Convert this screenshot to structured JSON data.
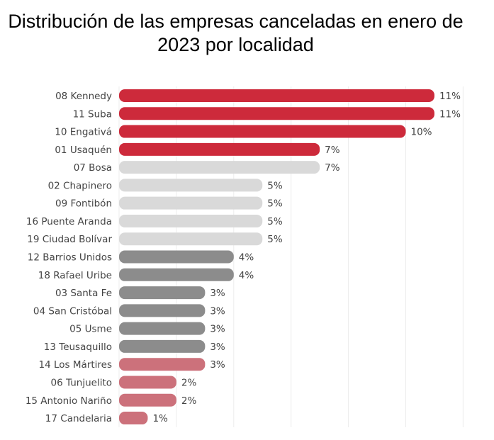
{
  "chart_data": {
    "type": "bar",
    "orientation": "horizontal",
    "title": "Distribución de las empresas canceladas en enero de 2023 por localidad",
    "xlabel": "",
    "ylabel": "",
    "xlim": [
      0,
      12
    ],
    "grid": true,
    "grid_step": 2,
    "value_suffix": "%",
    "categories": [
      "08 Kennedy",
      "11 Suba",
      "10 Engativá",
      "01 Usaquén",
      "07 Bosa",
      "02 Chapinero",
      "09 Fontibón",
      "16 Puente Aranda",
      "19 Ciudad Bolívar",
      "12 Barrios Unidos",
      "18 Rafael Uribe",
      "03 Santa Fe",
      "04 San Cristóbal",
      "05 Usme",
      "13 Teusaquillo",
      "14 Los Mártires",
      "06 Tunjuelito",
      "15 Antonio Nariño",
      "17 Candelaria"
    ],
    "values": [
      11,
      11,
      10,
      7,
      7,
      5,
      5,
      5,
      5,
      4,
      4,
      3,
      3,
      3,
      3,
      3,
      2,
      2,
      1
    ],
    "labels": [
      "11%",
      "11%",
      "10%",
      "7%",
      "7%",
      "5%",
      "5%",
      "5%",
      "5%",
      "4%",
      "4%",
      "3%",
      "3%",
      "3%",
      "3%",
      "3%",
      "2%",
      "2%",
      "1%"
    ],
    "color_groups": [
      "red",
      "red",
      "red",
      "red",
      "light",
      "light",
      "light",
      "light",
      "light",
      "dark",
      "dark",
      "dark",
      "dark",
      "dark",
      "dark",
      "pink",
      "pink",
      "pink",
      "pink"
    ],
    "colors": {
      "red": "#cd2a3b",
      "light": "#d9d9d9",
      "dark": "#8c8c8c",
      "pink": "#cc717b",
      "grid": "#ececec",
      "text": "#444444"
    }
  }
}
